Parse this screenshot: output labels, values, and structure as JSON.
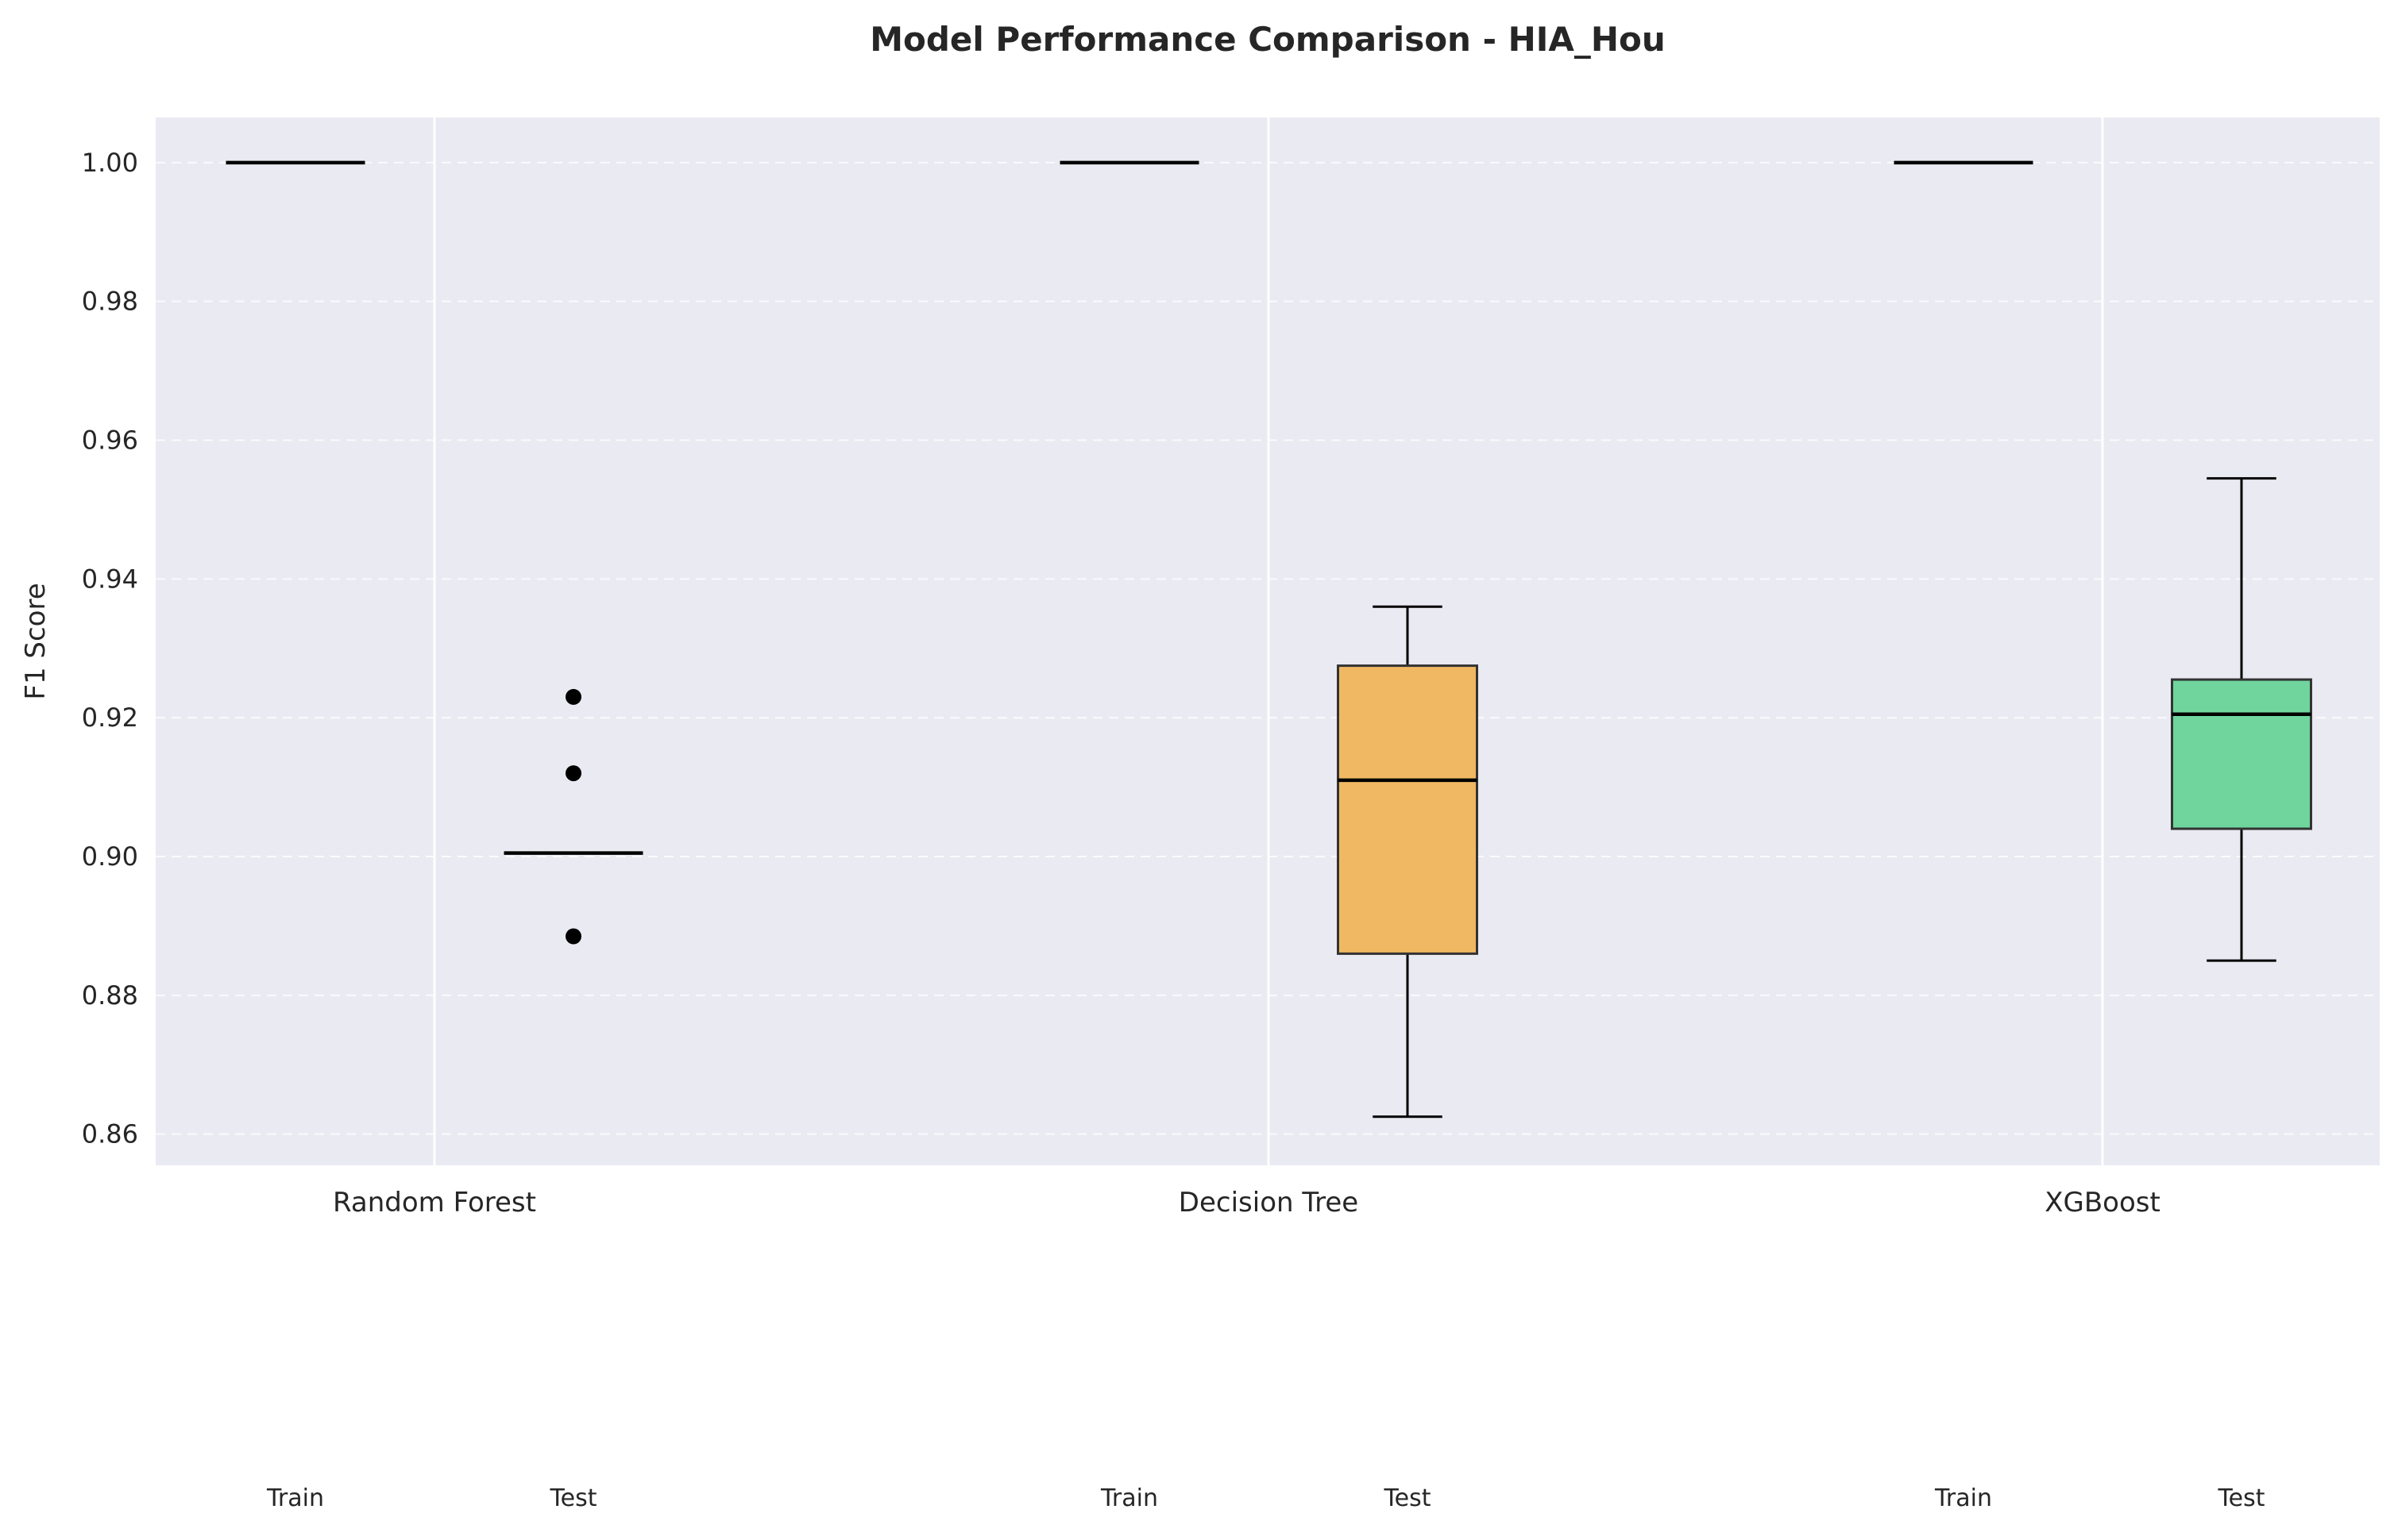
{
  "chart_data": {
    "type": "box",
    "title": "Model Performance Comparison - HIA_Hou",
    "xlabel": "",
    "ylabel": "F1 Score",
    "ylim": [
      0.8555,
      1.0065
    ],
    "yticks": [
      0.86,
      0.88,
      0.9,
      0.92,
      0.94,
      0.96,
      0.98,
      1.0
    ],
    "ytick_labels": [
      "0.86",
      "0.88",
      "0.90",
      "0.92",
      "0.94",
      "0.96",
      "0.98",
      "1.00"
    ],
    "grid": true,
    "legend": "none",
    "categories": [
      "Random Forest",
      "Decision Tree",
      "XGBoost"
    ],
    "subcategories": [
      "Train",
      "Test"
    ],
    "colors": {
      "background": "#eaeaf2",
      "Random Forest": "#5b8fd6",
      "Decision Tree": "#f0b356",
      "XGBoost": "#64d396"
    },
    "boxes": [
      {
        "category": "Random Forest",
        "split": "Train",
        "min": 1.0,
        "q1": 1.0,
        "median": 1.0,
        "q3": 1.0,
        "max": 1.0,
        "outliers": []
      },
      {
        "category": "Random Forest",
        "split": "Test",
        "min": 0.9005,
        "q1": 0.9005,
        "median": 0.9005,
        "q3": 0.9005,
        "max": 0.9005,
        "outliers": [
          0.923,
          0.912,
          0.8885
        ]
      },
      {
        "category": "Decision Tree",
        "split": "Train",
        "min": 1.0,
        "q1": 1.0,
        "median": 1.0,
        "q3": 1.0,
        "max": 1.0,
        "outliers": []
      },
      {
        "category": "Decision Tree",
        "split": "Test",
        "min": 0.8625,
        "q1": 0.886,
        "median": 0.911,
        "q3": 0.9275,
        "max": 0.936,
        "outliers": []
      },
      {
        "category": "XGBoost",
        "split": "Train",
        "min": 1.0,
        "q1": 1.0,
        "median": 1.0,
        "q3": 1.0,
        "max": 1.0,
        "outliers": []
      },
      {
        "category": "XGBoost",
        "split": "Test",
        "min": 0.885,
        "q1": 0.904,
        "median": 0.9205,
        "q3": 0.9255,
        "max": 0.9545,
        "outliers": []
      }
    ]
  }
}
